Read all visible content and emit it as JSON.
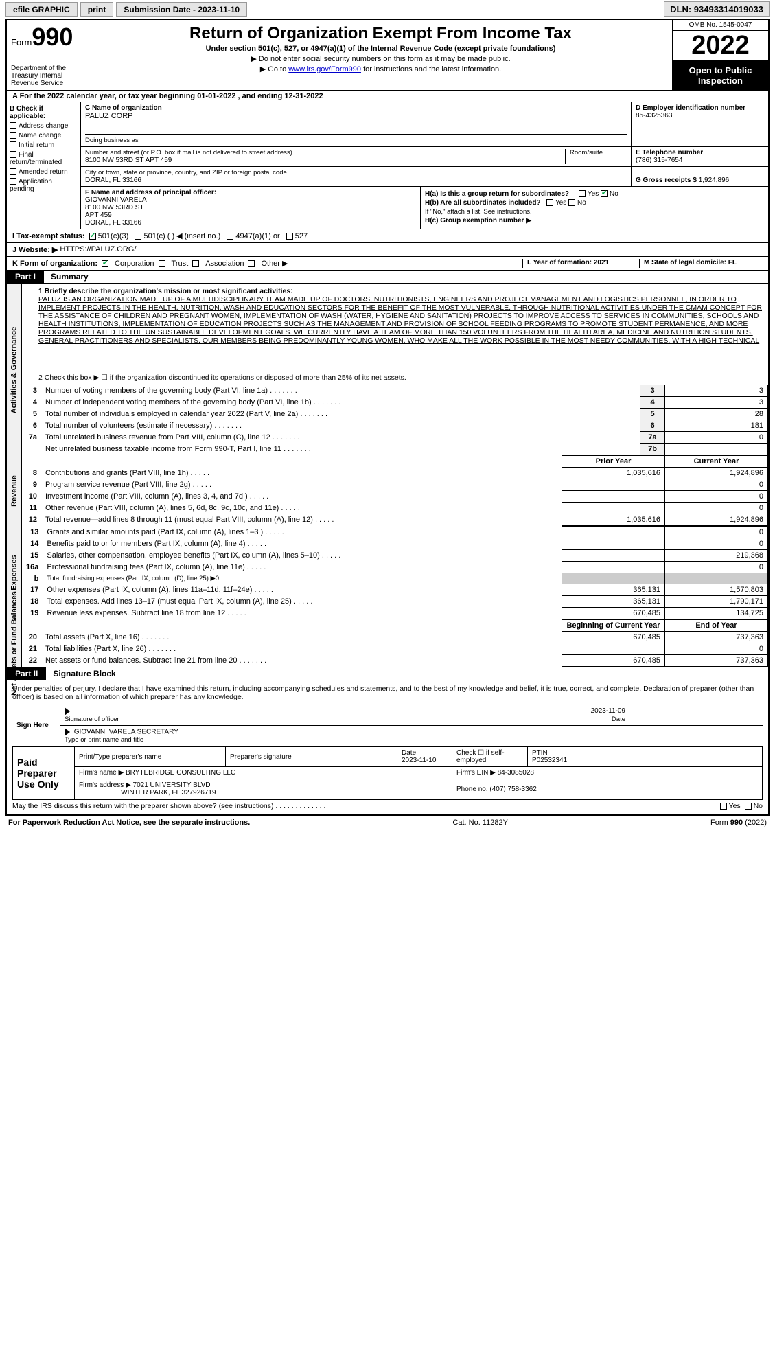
{
  "top": {
    "efile": "efile GRAPHIC",
    "print": "print",
    "subdate_label": "Submission Date - 2023-11-10",
    "dln": "DLN: 93493314019033"
  },
  "header": {
    "form_prefix": "Form",
    "form_num": "990",
    "dept": "Department of the Treasury Internal Revenue Service",
    "title": "Return of Organization Exempt From Income Tax",
    "sub": "Under section 501(c), 527, or 4947(a)(1) of the Internal Revenue Code (except private foundations)",
    "note1": "▶ Do not enter social security numbers on this form as it may be made public.",
    "note2_pre": "▶ Go to ",
    "note2_link": "www.irs.gov/Form990",
    "note2_post": " for instructions and the latest information.",
    "omb": "OMB No. 1545-0047",
    "year": "2022",
    "inspection": "Open to Public Inspection"
  },
  "lineA": "A  For the 2022 calendar year, or tax year beginning 01-01-2022   , and ending 12-31-2022",
  "boxB": {
    "label": "B Check if applicable:",
    "items": [
      "Address change",
      "Name change",
      "Initial return",
      "Final return/terminated",
      "Amended return",
      "Application pending"
    ]
  },
  "boxC": {
    "label": "C Name of organization",
    "name": "PALUZ CORP",
    "dba_label": "Doing business as",
    "street_label": "Number and street (or P.O. box if mail is not delivered to street address)",
    "street": "8100 NW 53RD ST APT 459",
    "room_label": "Room/suite",
    "city_label": "City or town, state or province, country, and ZIP or foreign postal code",
    "city": "DORAL, FL  33166"
  },
  "boxD": {
    "label": "D Employer identification number",
    "val": "85-4325363"
  },
  "boxE": {
    "label": "E Telephone number",
    "val": "(786) 315-7654"
  },
  "boxG": {
    "label": "G Gross receipts $",
    "val": "1,924,896"
  },
  "boxF": {
    "label": "F Name and address of principal officer:",
    "lines": [
      "GIOVANNI VARELA",
      "8100 NW 53RD ST",
      "APT 459",
      "DORAL, FL  33166"
    ]
  },
  "boxH": {
    "ha": "H(a)  Is this a group return for subordinates?",
    "hb": "H(b)  Are all subordinates included?",
    "hb_note": "If \"No,\" attach a list. See instructions.",
    "hc": "H(c)  Group exemption number ▶",
    "yes": "Yes",
    "no": "No"
  },
  "lineI": {
    "label": "I  Tax-exempt status:",
    "opts": [
      "501(c)(3)",
      "501(c) (  ) ◀ (insert no.)",
      "4947(a)(1) or",
      "527"
    ]
  },
  "lineJ": {
    "label": "J  Website: ▶",
    "val": "HTTPS://PALUZ.ORG/"
  },
  "lineK": {
    "label": "K Form of organization:",
    "opts": [
      "Corporation",
      "Trust",
      "Association",
      "Other ▶"
    ],
    "L": "L Year of formation: 2021",
    "M": "M State of legal domicile: FL"
  },
  "part1": {
    "num": "Part I",
    "title": "Summary"
  },
  "summary": {
    "side_act": "Activities & Governance",
    "side_rev": "Revenue",
    "side_exp": "Expenses",
    "side_net": "Net Assets or Fund Balances",
    "q1_label": "1  Briefly describe the organization's mission or most significant activities:",
    "mission": "PALUZ IS AN ORGANIZATION MADE UP OF A MULTIDISCIPLINARY TEAM MADE UP OF DOCTORS, NUTRITIONISTS, ENGINEERS AND PROJECT MANAGEMENT AND LOGISTICS PERSONNEL, IN ORDER TO IMPLEMENT PROJECTS IN THE HEALTH, NUTRITION, WASH AND EDUCATION SECTORS FOR THE BENEFIT OF THE MOST VULNERABLE, THROUGH NUTRITIONAL ACTIVITIES UNDER THE CMAM CONCEPT FOR THE ASSISTANCE OF CHILDREN AND PREGNANT WOMEN, IMPLEMENTATION OF WASH (WATER, HYGIENE AND SANITATION) PROJECTS TO IMPROVE ACCESS TO SERVICES IN COMMUNITIES, SCHOOLS AND HEALTH INSTITUTIONS, IMPLEMENTATION OF EDUCATION PROJECTS SUCH AS THE MANAGEMENT AND PROVISION OF SCHOOL FEEDING PROGRAMS TO PROMOTE STUDENT PERMANENCE, AND MORE PROGRAMS RELATED TO THE UN SUSTAINABLE DEVELOPMENT GOALS. WE CURRENTLY HAVE A TEAM OF MORE THAN 150 VOLUNTEERS FROM THE HEALTH AREA, MEDICINE AND NUTRITION STUDENTS, GENERAL PRACTITIONERS AND SPECIALISTS, OUR MEMBERS BEING PREDOMINANTLY YOUNG WOMEN, WHO MAKE ALL THE WORK POSSIBLE IN THE MOST NEEDY COMMUNITIES, WITH A HIGH TECHNICAL",
    "q2": "2  Check this box ▶ ☐ if the organization discontinued its operations or disposed of more than 25% of its net assets.",
    "rows_act": [
      {
        "n": "3",
        "desc": "Number of voting members of the governing body (Part VI, line 1a)",
        "box": "3",
        "val": "3"
      },
      {
        "n": "4",
        "desc": "Number of independent voting members of the governing body (Part VI, line 1b)",
        "box": "4",
        "val": "3"
      },
      {
        "n": "5",
        "desc": "Total number of individuals employed in calendar year 2022 (Part V, line 2a)",
        "box": "5",
        "val": "28"
      },
      {
        "n": "6",
        "desc": "Total number of volunteers (estimate if necessary)",
        "box": "6",
        "val": "181"
      },
      {
        "n": "7a",
        "desc": "Total unrelated business revenue from Part VIII, column (C), line 12",
        "box": "7a",
        "val": "0"
      },
      {
        "n": "",
        "desc": "Net unrelated business taxable income from Form 990-T, Part I, line 11",
        "box": "7b",
        "val": ""
      }
    ],
    "hdr_prior": "Prior Year",
    "hdr_curr": "Current Year",
    "rows_rev": [
      {
        "n": "8",
        "desc": "Contributions and grants (Part VIII, line 1h)",
        "p": "1,035,616",
        "c": "1,924,896"
      },
      {
        "n": "9",
        "desc": "Program service revenue (Part VIII, line 2g)",
        "p": "",
        "c": "0"
      },
      {
        "n": "10",
        "desc": "Investment income (Part VIII, column (A), lines 3, 4, and 7d )",
        "p": "",
        "c": "0"
      },
      {
        "n": "11",
        "desc": "Other revenue (Part VIII, column (A), lines 5, 6d, 8c, 9c, 10c, and 11e)",
        "p": "",
        "c": "0"
      },
      {
        "n": "12",
        "desc": "Total revenue—add lines 8 through 11 (must equal Part VIII, column (A), line 12)",
        "p": "1,035,616",
        "c": "1,924,896"
      }
    ],
    "rows_exp": [
      {
        "n": "13",
        "desc": "Grants and similar amounts paid (Part IX, column (A), lines 1–3 )",
        "p": "",
        "c": "0"
      },
      {
        "n": "14",
        "desc": "Benefits paid to or for members (Part IX, column (A), line 4)",
        "p": "",
        "c": "0"
      },
      {
        "n": "15",
        "desc": "Salaries, other compensation, employee benefits (Part IX, column (A), lines 5–10)",
        "p": "",
        "c": "219,368"
      },
      {
        "n": "16a",
        "desc": "Professional fundraising fees (Part IX, column (A), line 11e)",
        "p": "",
        "c": "0"
      },
      {
        "n": "b",
        "desc": "Total fundraising expenses (Part IX, column (D), line 25) ▶0",
        "p": "shaded",
        "c": "shaded"
      },
      {
        "n": "17",
        "desc": "Other expenses (Part IX, column (A), lines 11a–11d, 11f–24e)",
        "p": "365,131",
        "c": "1,570,803"
      },
      {
        "n": "18",
        "desc": "Total expenses. Add lines 13–17 (must equal Part IX, column (A), line 25)",
        "p": "365,131",
        "c": "1,790,171"
      },
      {
        "n": "19",
        "desc": "Revenue less expenses. Subtract line 18 from line 12",
        "p": "670,485",
        "c": "134,725"
      }
    ],
    "hdr_beg": "Beginning of Current Year",
    "hdr_end": "End of Year",
    "rows_net": [
      {
        "n": "20",
        "desc": "Total assets (Part X, line 16)",
        "p": "670,485",
        "c": "737,363"
      },
      {
        "n": "21",
        "desc": "Total liabilities (Part X, line 26)",
        "p": "",
        "c": "0"
      },
      {
        "n": "22",
        "desc": "Net assets or fund balances. Subtract line 21 from line 20",
        "p": "670,485",
        "c": "737,363"
      }
    ]
  },
  "part2": {
    "num": "Part II",
    "title": "Signature Block"
  },
  "sig": {
    "decl": "Under penalties of perjury, I declare that I have examined this return, including accompanying schedules and statements, and to the best of my knowledge and belief, it is true, correct, and complete. Declaration of preparer (other than officer) is based on all information of which preparer has any knowledge.",
    "sign_here": "Sign Here",
    "sig_of_officer": "Signature of officer",
    "date": "2023-11-09",
    "date_label": "Date",
    "officer_name": "GIOVANNI VARELA  SECRETARY",
    "officer_name_label": "Type or print name and title"
  },
  "preparer": {
    "label": "Paid Preparer Use Only",
    "h_name": "Print/Type preparer's name",
    "h_sig": "Preparer's signature",
    "h_date": "Date",
    "date": "2023-11-10",
    "check_label": "Check ☐ if self-employed",
    "ptin_label": "PTIN",
    "ptin": "P02532341",
    "firm_name_label": "Firm's name    ▶",
    "firm_name": "BRYTEBRIDGE CONSULTING LLC",
    "firm_ein_label": "Firm's EIN ▶",
    "firm_ein": "84-3085028",
    "firm_addr_label": "Firm's address ▶",
    "firm_addr1": "7021 UNIVERSITY BLVD",
    "firm_addr2": "WINTER PARK, FL  327926719",
    "phone_label": "Phone no.",
    "phone": "(407) 758-3362"
  },
  "discuss": "May the IRS discuss this return with the preparer shown above? (see instructions)",
  "footer": {
    "left": "For Paperwork Reduction Act Notice, see the separate instructions.",
    "mid": "Cat. No. 11282Y",
    "right": "Form 990 (2022)"
  }
}
